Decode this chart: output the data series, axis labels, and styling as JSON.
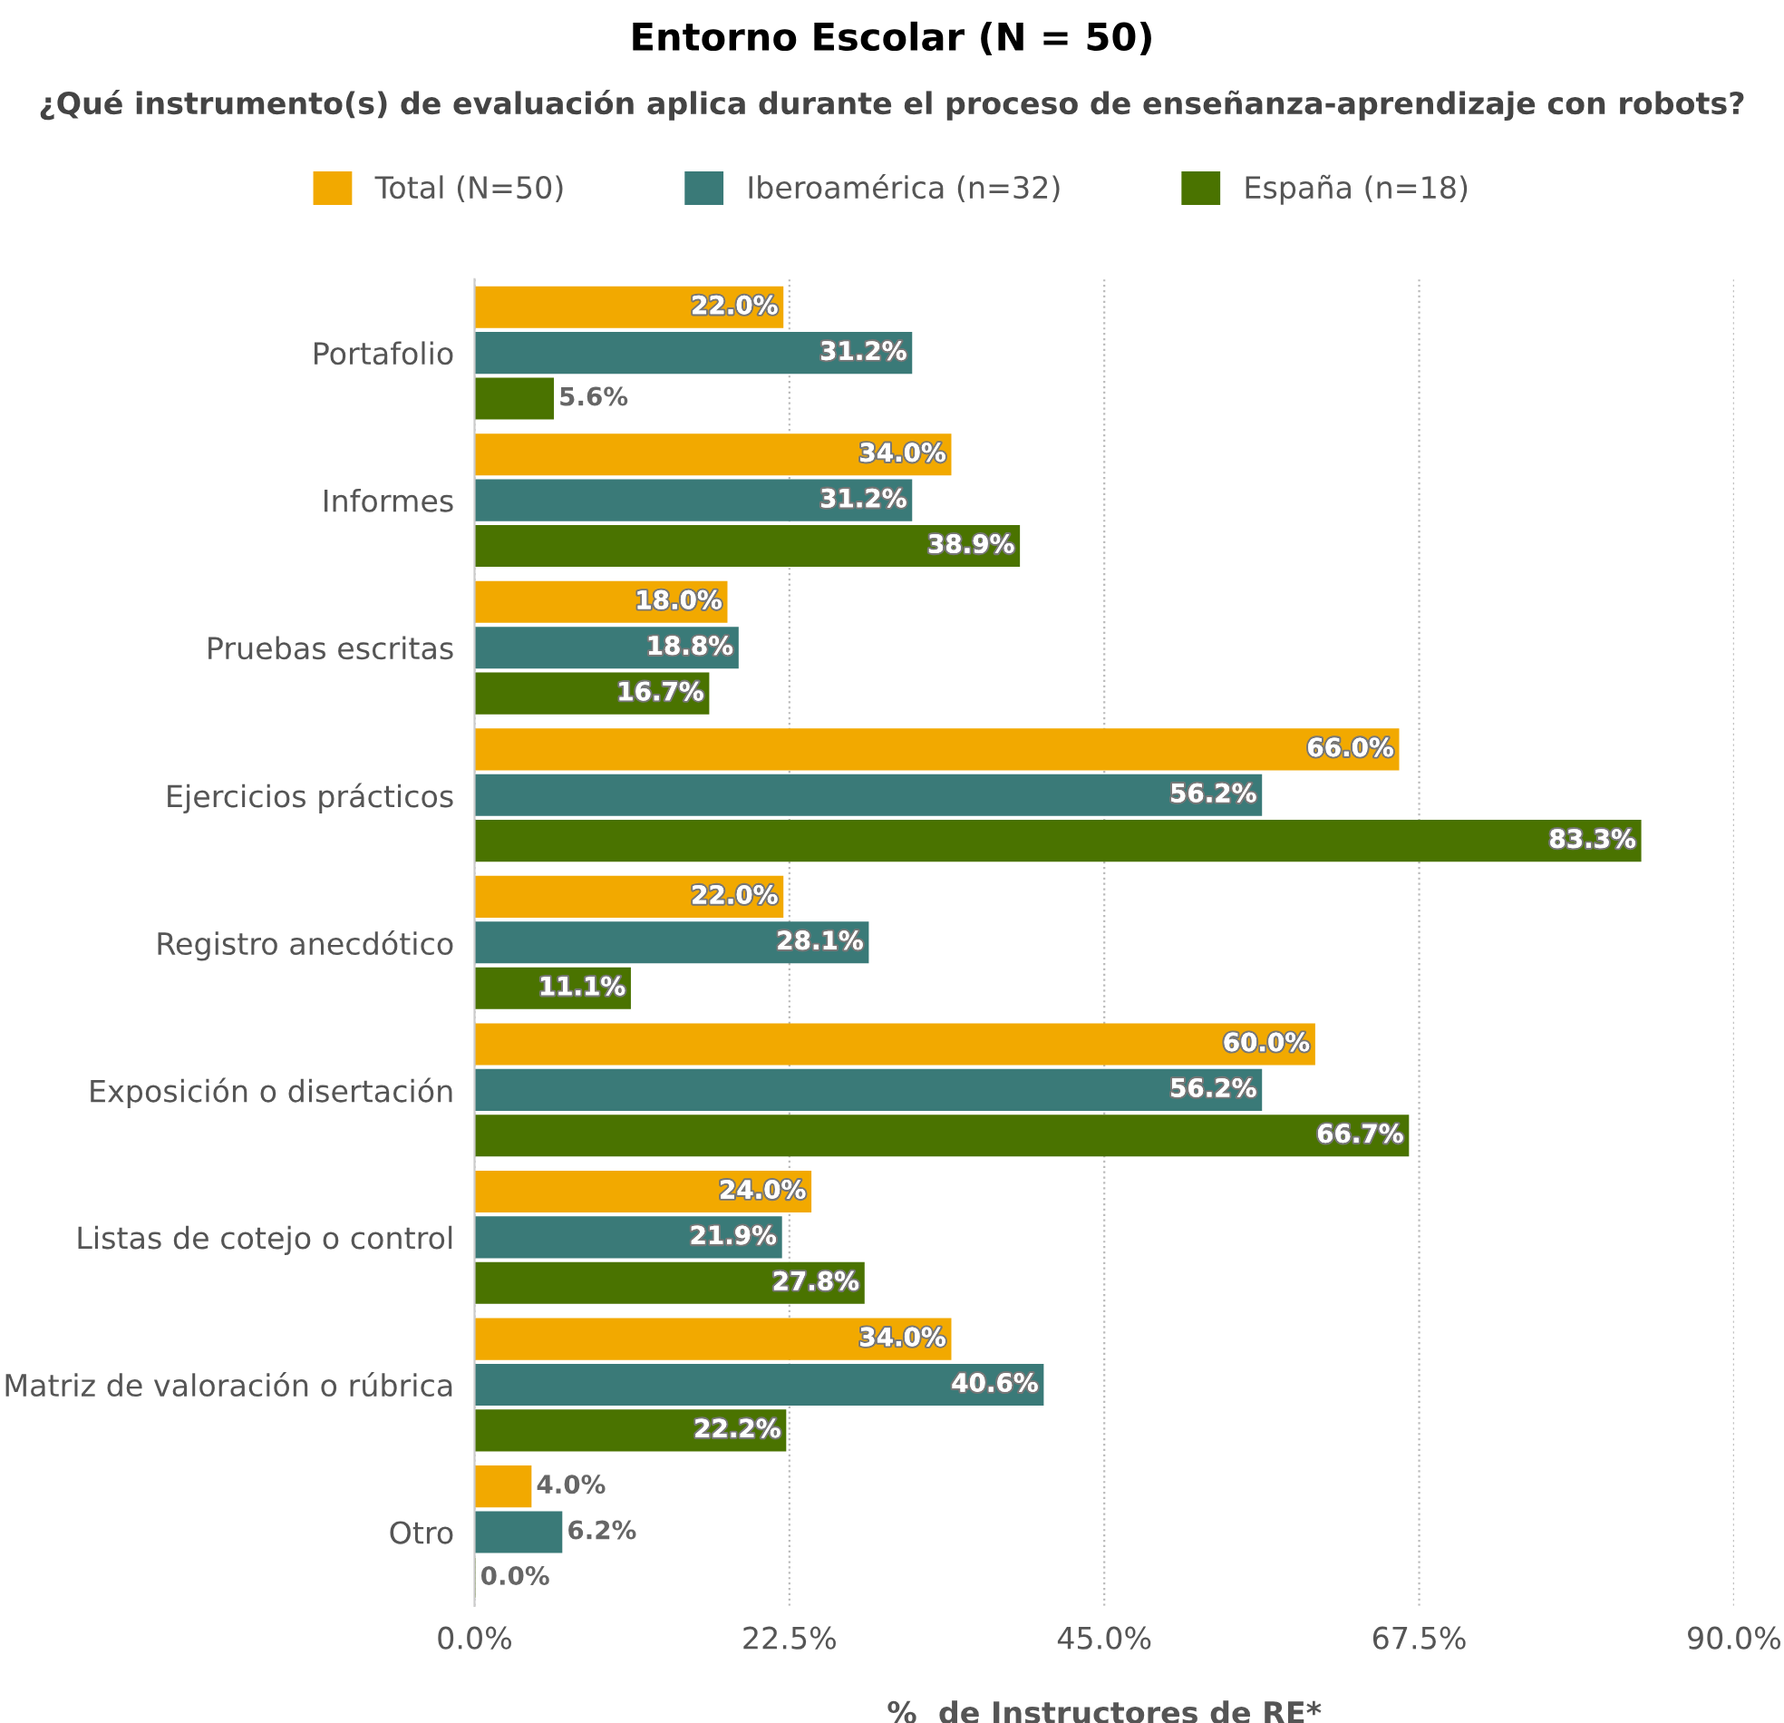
{
  "chart_data": {
    "type": "bar",
    "orientation": "horizontal",
    "title": "Entorno Escolar (N = 50)",
    "subtitle": "¿Qué instrumento(s) de evaluación aplica durante el proceso de enseñanza-aprendizaje con robots?",
    "xlabel": "%  de Instructores de RE*",
    "categories": [
      "Portafolio",
      "Informes",
      "Pruebas escritas",
      "Ejercicios prácticos",
      "Registro anecdótico",
      "Exposición o disertación",
      "Listas de cotejo o control",
      "Matriz de valoración o rúbrica",
      "Otro"
    ],
    "series": [
      {
        "name": "Total (N=50)",
        "color": "#f2a900",
        "values": [
          22.0,
          34.0,
          18.0,
          66.0,
          22.0,
          60.0,
          24.0,
          34.0,
          4.0
        ],
        "value_labels": [
          "22.0%",
          "34.0%",
          "18.0%",
          "66.0%",
          "22.0%",
          "60.0%",
          "24.0%",
          "34.0%",
          "4.0%"
        ]
      },
      {
        "name": "Iberoamérica (n=32)",
        "color": "#3a7a78",
        "values": [
          31.2,
          31.2,
          18.8,
          56.2,
          28.1,
          56.2,
          21.9,
          40.6,
          6.2
        ],
        "value_labels": [
          "31.2%",
          "31.2%",
          "18.8%",
          "56.2%",
          "28.1%",
          "56.2%",
          "21.9%",
          "40.6%",
          "6.2%"
        ]
      },
      {
        "name": "España (n=18)",
        "color": "#4a7300",
        "values": [
          5.6,
          38.9,
          16.7,
          83.3,
          11.1,
          66.7,
          27.8,
          22.2,
          0.0
        ],
        "value_labels": [
          "5.6%",
          "38.9%",
          "16.7%",
          "83.3%",
          "11.1%",
          "66.7%",
          "27.8%",
          "22.2%",
          "0.0%"
        ]
      }
    ],
    "xlim": [
      0,
      90
    ],
    "xticks": [
      {
        "value": 0,
        "label": "0.0%"
      },
      {
        "value": 22.5,
        "label": "22.5%"
      },
      {
        "value": 45,
        "label": "45.0%"
      },
      {
        "value": 67.5,
        "label": "67.5%"
      },
      {
        "value": 90,
        "label": "90.0%"
      }
    ],
    "grid": "x",
    "legend": "top"
  }
}
